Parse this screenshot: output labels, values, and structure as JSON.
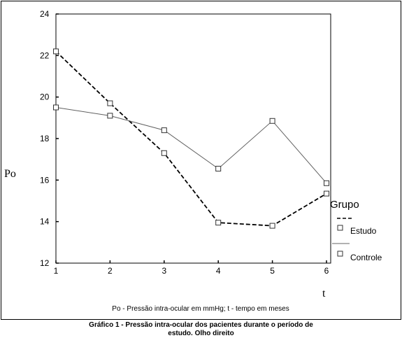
{
  "chart_data": {
    "type": "line",
    "xlabel": "t",
    "ylabel": "Po",
    "xlim": [
      1,
      6
    ],
    "ylim": [
      12,
      24
    ],
    "x_ticks": [
      "1",
      "2",
      "3",
      "4",
      "5",
      "6"
    ],
    "y_ticks": [
      "12",
      "14",
      "16",
      "18",
      "20",
      "22",
      "24"
    ],
    "grid": false,
    "legend": {
      "title": "Grupo",
      "placement": "right",
      "entries": [
        "Estudo",
        "Controle"
      ]
    },
    "note": "Po - Pressão intra-ocular em mmHg; t - tempo em meses",
    "x": [
      1,
      2,
      3,
      4,
      5,
      6
    ],
    "series": [
      {
        "name": "Estudo",
        "style": "dashed",
        "color": "#000000",
        "values": [
          22.2,
          19.7,
          17.3,
          13.95,
          13.8,
          15.35
        ]
      },
      {
        "name": "Controle",
        "style": "solid",
        "color": "#606060",
        "values": [
          19.5,
          19.1,
          18.4,
          16.55,
          18.85,
          15.85
        ]
      }
    ]
  },
  "caption": {
    "line1": "Gráfico 1 - Pressão intra-ocular dos pacientes durante o período de",
    "line2": "estudo. Olho direito"
  }
}
